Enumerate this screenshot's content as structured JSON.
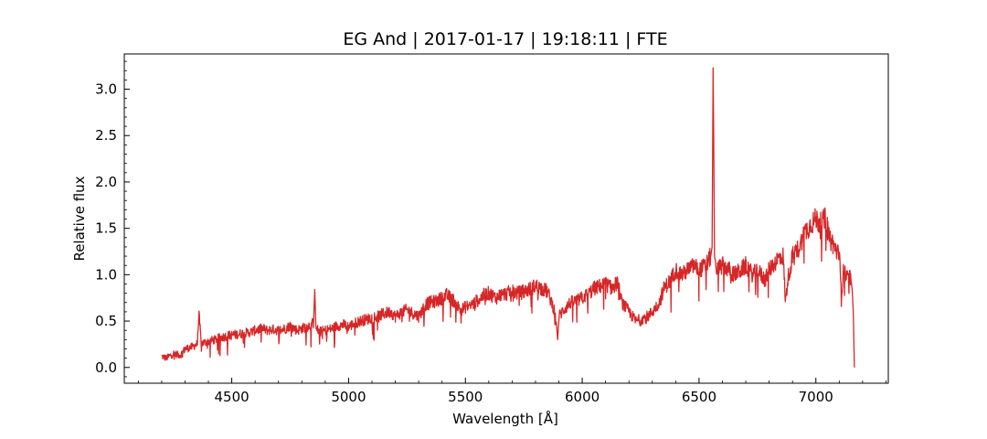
{
  "chart_data": {
    "type": "line",
    "title": "EG And | 2017-01-17 | 19:18:11 | FTE",
    "xlabel": "Wavelength [Å]",
    "ylabel": "Relative flux",
    "xlim": [
      4040,
      7310
    ],
    "ylim": [
      -0.17,
      3.38
    ],
    "xticks": [
      {
        "value": 4500,
        "label": "4500"
      },
      {
        "value": 5000,
        "label": "5000"
      },
      {
        "value": 5500,
        "label": "5500"
      },
      {
        "value": 6000,
        "label": "6000"
      },
      {
        "value": 6500,
        "label": "6500"
      },
      {
        "value": 7000,
        "label": "7000"
      }
    ],
    "yticks": [
      {
        "value": 0.0,
        "label": "0.0"
      },
      {
        "value": 0.5,
        "label": "0.5"
      },
      {
        "value": 1.0,
        "label": "1.0"
      },
      {
        "value": 1.5,
        "label": "1.5"
      },
      {
        "value": 2.0,
        "label": "2.0"
      },
      {
        "value": 2.5,
        "label": "2.5"
      },
      {
        "value": 3.0,
        "label": "3.0"
      }
    ],
    "grid": false,
    "series_color": "#d62728",
    "series": [
      {
        "x": [
          4200,
          4220,
          4250,
          4280,
          4300,
          4330,
          4350,
          4360,
          4370,
          4400,
          4430,
          4450,
          4480,
          4500,
          4530,
          4550,
          4580,
          4600,
          4630,
          4650,
          4680,
          4700,
          4730,
          4750,
          4780,
          4800,
          4830,
          4850,
          4855,
          4860,
          4870,
          4900,
          4930,
          4950,
          4980,
          5000,
          5030,
          5050,
          5080,
          5100,
          5130,
          5150,
          5180,
          5200,
          5230,
          5250,
          5280,
          5300,
          5330,
          5350,
          5380,
          5400,
          5420,
          5450,
          5480,
          5500,
          5530,
          5550,
          5580,
          5600,
          5630,
          5650,
          5680,
          5700,
          5730,
          5750,
          5780,
          5800,
          5830,
          5850,
          5870,
          5880,
          5890,
          5895,
          5900,
          5920,
          5950,
          5980,
          6000,
          6030,
          6050,
          6080,
          6100,
          6130,
          6150,
          6170,
          6200,
          6230,
          6250,
          6280,
          6300,
          6330,
          6350,
          6380,
          6400,
          6430,
          6450,
          6480,
          6500,
          6530,
          6550,
          6556,
          6560,
          6563,
          6566,
          6570,
          6575,
          6600,
          6630,
          6650,
          6680,
          6700,
          6730,
          6750,
          6780,
          6800,
          6830,
          6850,
          6860,
          6870,
          6880,
          6900,
          6930,
          6950,
          6980,
          7000,
          7020,
          7040,
          7050,
          7060,
          7080,
          7100,
          7110,
          7120,
          7130,
          7140,
          7150,
          7155,
          7160,
          7165
        ],
        "y": [
          0.12,
          0.1,
          0.15,
          0.13,
          0.2,
          0.22,
          0.25,
          0.55,
          0.26,
          0.28,
          0.3,
          0.32,
          0.34,
          0.35,
          0.36,
          0.37,
          0.38,
          0.4,
          0.42,
          0.4,
          0.41,
          0.4,
          0.42,
          0.45,
          0.4,
          0.42,
          0.45,
          0.48,
          0.84,
          0.48,
          0.38,
          0.4,
          0.42,
          0.45,
          0.46,
          0.44,
          0.48,
          0.5,
          0.52,
          0.54,
          0.55,
          0.58,
          0.6,
          0.55,
          0.6,
          0.62,
          0.58,
          0.55,
          0.68,
          0.7,
          0.72,
          0.75,
          0.78,
          0.72,
          0.62,
          0.65,
          0.68,
          0.72,
          0.78,
          0.8,
          0.75,
          0.78,
          0.8,
          0.82,
          0.8,
          0.82,
          0.85,
          0.88,
          0.85,
          0.82,
          0.7,
          0.62,
          0.45,
          0.3,
          0.55,
          0.62,
          0.7,
          0.72,
          0.75,
          0.8,
          0.85,
          0.88,
          0.9,
          0.85,
          0.92,
          0.7,
          0.6,
          0.5,
          0.52,
          0.55,
          0.6,
          0.7,
          0.85,
          0.95,
          1.05,
          1.0,
          1.05,
          1.1,
          1.05,
          1.1,
          1.2,
          1.3,
          3.23,
          2.45,
          1.2,
          1.15,
          1.05,
          1.1,
          1.05,
          1.0,
          1.05,
          1.1,
          1.0,
          1.05,
          0.95,
          1.05,
          1.15,
          1.2,
          1.2,
          0.7,
          0.95,
          1.2,
          1.3,
          1.45,
          1.55,
          1.6,
          1.55,
          1.6,
          1.5,
          1.4,
          1.3,
          1.2,
          0.8,
          1.1,
          0.95,
          1.0,
          0.95,
          0.85,
          0.6,
          0.0
        ]
      }
    ]
  }
}
